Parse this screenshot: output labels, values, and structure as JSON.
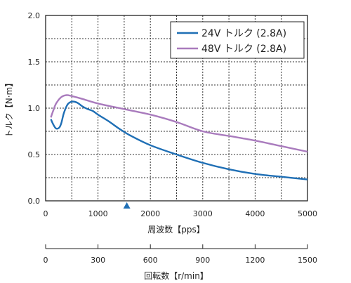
{
  "chart_data": {
    "type": "line",
    "xlabel": "周波数【pps】",
    "ylabel": "トルク【N·m】",
    "xlim": [
      0,
      5000
    ],
    "ylim": [
      0,
      2.0
    ],
    "x_ticks": [
      0,
      1000,
      2000,
      3000,
      4000,
      5000
    ],
    "y_ticks": [
      "0.0",
      "0.5",
      "1.0",
      "1.5",
      "2.0"
    ],
    "grid": "dotted",
    "legend_position": "top-right",
    "marker": {
      "shape": "triangle",
      "x": 1550,
      "color": "#1f6fb5"
    },
    "series": [
      {
        "name": "24V トルク (2.8A)",
        "color": "#1f6fb5",
        "points": [
          [
            100,
            0.88
          ],
          [
            150,
            0.82
          ],
          [
            200,
            0.78
          ],
          [
            260,
            0.79
          ],
          [
            300,
            0.84
          ],
          [
            350,
            0.95
          ],
          [
            420,
            1.04
          ],
          [
            500,
            1.07
          ],
          [
            600,
            1.06
          ],
          [
            700,
            1.02
          ],
          [
            800,
            0.99
          ],
          [
            900,
            0.97
          ],
          [
            1000,
            0.93
          ],
          [
            1200,
            0.86
          ],
          [
            1400,
            0.78
          ],
          [
            1600,
            0.71
          ],
          [
            2000,
            0.6
          ],
          [
            2500,
            0.5
          ],
          [
            3000,
            0.41
          ],
          [
            3500,
            0.34
          ],
          [
            4000,
            0.29
          ],
          [
            4500,
            0.26
          ],
          [
            5000,
            0.23
          ]
        ]
      },
      {
        "name": "48V トルク (2.8A)",
        "color": "#a97bbd",
        "points": [
          [
            100,
            0.9
          ],
          [
            150,
            0.98
          ],
          [
            200,
            1.05
          ],
          [
            300,
            1.12
          ],
          [
            400,
            1.14
          ],
          [
            500,
            1.13
          ],
          [
            700,
            1.1
          ],
          [
            1000,
            1.05
          ],
          [
            1500,
            0.99
          ],
          [
            2000,
            0.93
          ],
          [
            2500,
            0.85
          ],
          [
            3000,
            0.75
          ],
          [
            3500,
            0.7
          ],
          [
            4000,
            0.65
          ],
          [
            4500,
            0.59
          ],
          [
            5000,
            0.53
          ]
        ]
      }
    ],
    "secondary_axis": {
      "label": "回転数【r/min】",
      "range": [
        0,
        1500
      ],
      "ticks": [
        0,
        300,
        600,
        900,
        1200,
        1500
      ]
    }
  }
}
